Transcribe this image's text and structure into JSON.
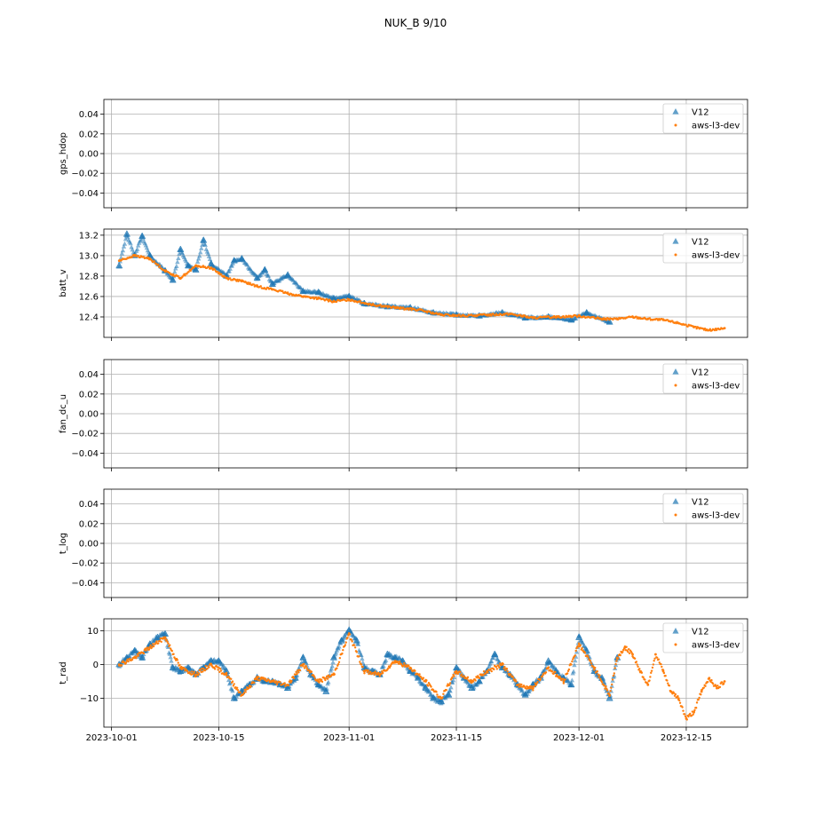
{
  "chart_data": {
    "type": "scatter",
    "title": "NUK_B 9/10",
    "x_axis": {
      "kind": "date",
      "xlim": [
        "2023-09-30",
        "2023-12-23"
      ],
      "tick_labels": [
        "2023-10-01",
        "2023-10-15",
        "2023-11-01",
        "2023-11-15",
        "2023-12-01",
        "2023-12-15"
      ],
      "tick_dates": [
        "2023-10-01",
        "2023-10-15",
        "2023-11-01",
        "2023-11-15",
        "2023-12-01",
        "2023-12-15"
      ]
    },
    "grid": true,
    "legend_placement": "upper right",
    "colors": {
      "V12": "#1f77b4",
      "aws-l3-dev": "#ff7f0e"
    },
    "panels": [
      {
        "ylabel": "gps_hdop",
        "ylim": [
          -0.055,
          0.055
        ],
        "yticks": [
          "0.04",
          "0.02",
          "0.00",
          "−0.02",
          "−0.04"
        ],
        "ytick_values": [
          0.04,
          0.02,
          0.0,
          -0.02,
          -0.04
        ],
        "legend": [
          "V12",
          "aws-l3-dev"
        ],
        "series": []
      },
      {
        "ylabel": "batt_v",
        "ylim": [
          12.2,
          13.26
        ],
        "yticks": [
          "13.2",
          "13.0",
          "12.8",
          "12.6",
          "12.4"
        ],
        "ytick_values": [
          13.2,
          13.0,
          12.8,
          12.6,
          12.4
        ],
        "legend": [
          "V12",
          "aws-l3-dev"
        ],
        "series": [
          {
            "name": "V12",
            "marker": "triangle",
            "x": [
              "2023-10-02",
              "2023-10-03",
              "2023-10-04",
              "2023-10-05",
              "2023-10-06",
              "2023-10-08",
              "2023-10-09",
              "2023-10-10",
              "2023-10-11",
              "2023-10-12",
              "2023-10-13",
              "2023-10-14",
              "2023-10-16",
              "2023-10-17",
              "2023-10-18",
              "2023-10-20",
              "2023-10-21",
              "2023-10-22",
              "2023-10-24",
              "2023-10-26",
              "2023-10-28",
              "2023-10-30",
              "2023-11-01",
              "2023-11-03",
              "2023-11-06",
              "2023-11-09",
              "2023-11-12",
              "2023-11-15",
              "2023-11-18",
              "2023-11-21",
              "2023-11-24",
              "2023-11-27",
              "2023-11-30",
              "2023-12-02",
              "2023-12-05"
            ],
            "y": [
              12.9,
              13.21,
              13.0,
              13.19,
              13.0,
              12.85,
              12.76,
              13.06,
              12.9,
              12.86,
              13.15,
              12.92,
              12.8,
              12.95,
              12.97,
              12.78,
              12.86,
              12.72,
              12.81,
              12.65,
              12.64,
              12.58,
              12.6,
              12.53,
              12.5,
              12.49,
              12.44,
              12.42,
              12.41,
              12.44,
              12.39,
              12.4,
              12.37,
              12.44,
              12.35
            ]
          },
          {
            "name": "aws-l3-dev",
            "marker": "dot",
            "x": [
              "2023-10-02",
              "2023-10-04",
              "2023-10-06",
              "2023-10-08",
              "2023-10-10",
              "2023-10-12",
              "2023-10-14",
              "2023-10-16",
              "2023-10-18",
              "2023-10-20",
              "2023-10-22",
              "2023-10-24",
              "2023-10-26",
              "2023-10-28",
              "2023-10-30",
              "2023-11-01",
              "2023-11-04",
              "2023-11-07",
              "2023-11-10",
              "2023-11-13",
              "2023-11-16",
              "2023-11-19",
              "2023-11-22",
              "2023-11-25",
              "2023-11-28",
              "2023-12-01",
              "2023-12-04",
              "2023-12-06",
              "2023-12-08",
              "2023-12-10",
              "2023-12-12",
              "2023-12-14",
              "2023-12-16",
              "2023-12-18",
              "2023-12-20"
            ],
            "y": [
              12.95,
              13.0,
              12.97,
              12.85,
              12.78,
              12.9,
              12.88,
              12.78,
              12.75,
              12.7,
              12.67,
              12.63,
              12.6,
              12.58,
              12.55,
              12.57,
              12.52,
              12.49,
              12.47,
              12.42,
              12.41,
              12.42,
              12.43,
              12.39,
              12.4,
              12.41,
              12.38,
              12.38,
              12.4,
              12.38,
              12.37,
              12.34,
              12.3,
              12.27,
              12.29
            ]
          }
        ]
      },
      {
        "ylabel": "fan_dc_u",
        "ylim": [
          -0.055,
          0.055
        ],
        "yticks": [
          "0.04",
          "0.02",
          "0.00",
          "−0.02",
          "−0.04"
        ],
        "ytick_values": [
          0.04,
          0.02,
          0.0,
          -0.02,
          -0.04
        ],
        "legend": [
          "V12",
          "aws-l3-dev"
        ],
        "series": []
      },
      {
        "ylabel": "t_log",
        "ylim": [
          -0.055,
          0.055
        ],
        "yticks": [
          "0.04",
          "0.02",
          "0.00",
          "−0.02",
          "−0.04"
        ],
        "ytick_values": [
          0.04,
          0.02,
          0.0,
          -0.02,
          -0.04
        ],
        "legend": [
          "V12",
          "aws-l3-dev"
        ],
        "series": []
      },
      {
        "ylabel": "t_rad",
        "ylim": [
          -18.5,
          13.5
        ],
        "yticks": [
          "10",
          "0",
          "−10"
        ],
        "ytick_values": [
          10,
          0,
          -10
        ],
        "legend": [
          "V12",
          "aws-l3-dev"
        ],
        "series": [
          {
            "name": "V12",
            "marker": "triangle",
            "x": [
              "2023-10-02",
              "2023-10-03",
              "2023-10-04",
              "2023-10-05",
              "2023-10-06",
              "2023-10-07",
              "2023-10-08",
              "2023-10-09",
              "2023-10-10",
              "2023-10-11",
              "2023-10-12",
              "2023-10-13",
              "2023-10-14",
              "2023-10-15",
              "2023-10-16",
              "2023-10-17",
              "2023-10-18",
              "2023-10-19",
              "2023-10-20",
              "2023-10-21",
              "2023-10-22",
              "2023-10-23",
              "2023-10-24",
              "2023-10-25",
              "2023-10-26",
              "2023-10-27",
              "2023-10-28",
              "2023-10-29",
              "2023-10-30",
              "2023-10-31",
              "2023-11-01",
              "2023-11-02",
              "2023-11-03",
              "2023-11-04",
              "2023-11-05",
              "2023-11-06",
              "2023-11-07",
              "2023-11-08",
              "2023-11-09",
              "2023-11-10",
              "2023-11-11",
              "2023-11-12",
              "2023-11-13",
              "2023-11-14",
              "2023-11-15",
              "2023-11-16",
              "2023-11-17",
              "2023-11-18",
              "2023-11-19",
              "2023-11-20",
              "2023-11-21",
              "2023-11-22",
              "2023-11-23",
              "2023-11-24",
              "2023-11-25",
              "2023-11-26",
              "2023-11-27",
              "2023-11-28",
              "2023-11-29",
              "2023-11-30",
              "2023-12-01",
              "2023-12-02",
              "2023-12-03",
              "2023-12-04",
              "2023-12-05",
              "2023-12-06"
            ],
            "y": [
              0,
              2,
              4,
              2,
              6,
              8,
              9,
              -1,
              -2,
              -1,
              -3,
              -1,
              1,
              1,
              -2,
              -10,
              -8,
              -6,
              -4,
              -5,
              -5,
              -6,
              -7,
              -4,
              2,
              -3,
              -6,
              -8,
              2,
              7,
              10,
              7,
              -1,
              -2,
              -3,
              3,
              2,
              1,
              -2,
              -4,
              -7,
              -10,
              -11,
              -9,
              -1,
              -4,
              -7,
              -5,
              -2,
              3,
              -1,
              -3,
              -6,
              -9,
              -6,
              -4,
              1,
              -2,
              -4,
              -6,
              8,
              4,
              -2,
              -4,
              -10,
              2
            ]
          },
          {
            "name": "aws-l3-dev",
            "marker": "dot",
            "x": [
              "2023-10-02",
              "2023-10-04",
              "2023-10-06",
              "2023-10-08",
              "2023-10-10",
              "2023-10-12",
              "2023-10-14",
              "2023-10-16",
              "2023-10-18",
              "2023-10-20",
              "2023-10-22",
              "2023-10-24",
              "2023-10-26",
              "2023-10-28",
              "2023-10-30",
              "2023-11-01",
              "2023-11-03",
              "2023-11-05",
              "2023-11-07",
              "2023-11-09",
              "2023-11-11",
              "2023-11-13",
              "2023-11-15",
              "2023-11-17",
              "2023-11-19",
              "2023-11-21",
              "2023-11-23",
              "2023-11-25",
              "2023-11-27",
              "2023-11-29",
              "2023-12-01",
              "2023-12-03",
              "2023-12-05",
              "2023-12-06",
              "2023-12-07",
              "2023-12-08",
              "2023-12-09",
              "2023-12-10",
              "2023-12-11",
              "2023-12-12",
              "2023-12-13",
              "2023-12-14",
              "2023-12-15",
              "2023-12-16",
              "2023-12-17",
              "2023-12-18",
              "2023-12-19",
              "2023-12-20"
            ],
            "y": [
              0,
              2,
              5,
              8,
              -1,
              -3,
              0,
              -3,
              -9,
              -4,
              -5,
              -6,
              0,
              -5,
              -3,
              9,
              -2,
              -3,
              1,
              -1,
              -5,
              -10,
              -2,
              -5,
              -2,
              0,
              -6,
              -7,
              -1,
              -5,
              6,
              -1,
              -9,
              2,
              5,
              3,
              -2,
              -6,
              3,
              -2,
              -8,
              -10,
              -16,
              -14,
              -8,
              -4,
              -7,
              -5
            ]
          }
        ]
      }
    ]
  }
}
